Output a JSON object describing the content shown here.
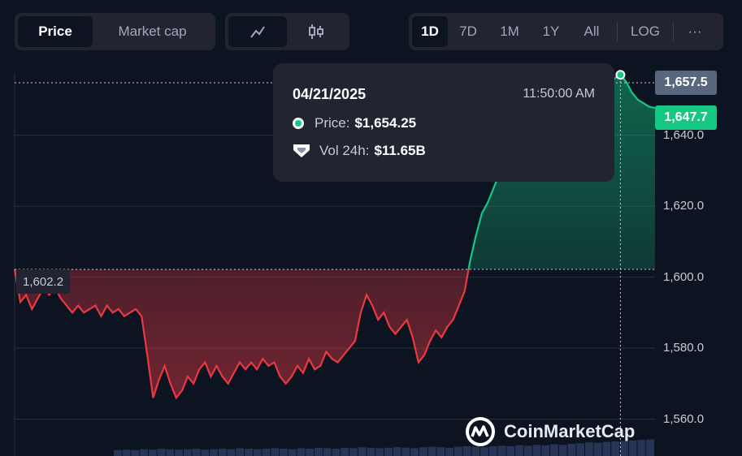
{
  "toolbar": {
    "metric_tabs": [
      {
        "label": "Price",
        "active": true
      },
      {
        "label": "Market cap",
        "active": false
      }
    ],
    "chart_types": [
      {
        "icon": "line-chart-icon",
        "active": true
      },
      {
        "icon": "candlestick-icon",
        "active": false
      }
    ],
    "ranges": [
      {
        "label": "1D",
        "active": true
      },
      {
        "label": "7D",
        "active": false
      },
      {
        "label": "1M",
        "active": false
      },
      {
        "label": "1Y",
        "active": false
      },
      {
        "label": "All",
        "active": false
      }
    ],
    "log_label": "LOG",
    "more_label": "···"
  },
  "tooltip": {
    "date": "04/21/2025",
    "time": "11:50:00 AM",
    "price_label": "Price:",
    "price_value": "$1,654.25",
    "vol_label": "Vol 24h:",
    "vol_value": "$11.65B"
  },
  "badges": {
    "hover_price": "1,657.5",
    "current_price": "1,647.7",
    "open_price": "1,602.2"
  },
  "watermark": "CoinMarketCap",
  "colors": {
    "up": "#16c784",
    "down": "#ea3943",
    "background": "#0d1421",
    "panel": "#222531",
    "grid": "#2a2f3d"
  },
  "chart_data": {
    "type": "area",
    "title": "",
    "xlabel": "",
    "ylabel": "",
    "ylim": [
      1551,
      1661
    ],
    "yticks": [
      "1,640.0",
      "1,620.0",
      "1,600.0",
      "1,580.0",
      "1,560.0"
    ],
    "ytick_values": [
      1640,
      1620,
      1600,
      1580,
      1560
    ],
    "baseline": 1602.2,
    "hover_value": 1657.5,
    "last_value": 1647.7,
    "grid": true,
    "series": [
      {
        "values": [
          1602.2,
          1593,
          1595,
          1591,
          1594,
          1597,
          1595,
          1597,
          1594,
          1592,
          1590,
          1592,
          1590,
          1591,
          1592,
          1589,
          1592,
          1590,
          1591,
          1589,
          1590,
          1591,
          1589,
          1578,
          1566,
          1571,
          1575,
          1570,
          1566,
          1568,
          1572,
          1570,
          1574,
          1576,
          1572,
          1575,
          1572,
          1570,
          1573,
          1576,
          1574,
          1576,
          1574,
          1577,
          1575,
          1576,
          1572,
          1570,
          1572,
          1575,
          1573,
          1577,
          1574,
          1575,
          1579,
          1577,
          1576,
          1578,
          1580,
          1582,
          1590,
          1595,
          1592,
          1588,
          1590,
          1586,
          1584,
          1586,
          1588,
          1583,
          1576,
          1578,
          1582,
          1585,
          1583,
          1586,
          1588,
          1592,
          1596,
          1605,
          1612,
          1618,
          1621,
          1625,
          1629,
          1633,
          1636,
          1638,
          1640,
          1641,
          1642,
          1643,
          1644,
          1645,
          1646,
          1647,
          1648,
          1649,
          1650,
          1651,
          1652,
          1653,
          1654,
          1655,
          1656,
          1657,
          1655,
          1652,
          1650,
          1649,
          1648,
          1647.7
        ]
      }
    ],
    "volume": [
      12,
      13,
      12,
      14,
      13,
      15,
      14,
      13,
      14,
      15,
      13,
      14,
      15,
      14,
      16,
      15,
      14,
      15,
      16,
      15,
      14,
      16,
      15,
      17,
      16,
      15,
      17,
      16,
      18,
      17,
      16,
      17,
      18,
      17,
      16,
      18,
      19,
      18,
      17,
      19,
      20,
      19,
      18,
      20,
      21,
      20,
      22,
      21,
      23,
      22,
      24,
      23,
      25,
      26,
      28,
      27,
      29,
      30,
      31,
      32,
      33,
      34
    ]
  }
}
